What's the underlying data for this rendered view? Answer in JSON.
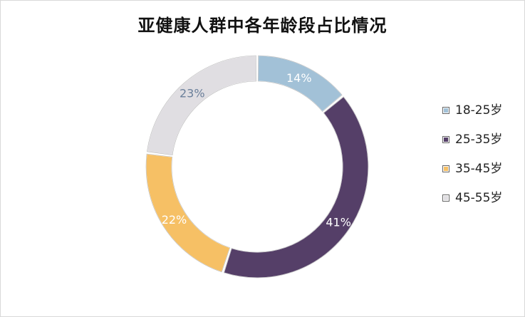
{
  "chart_data": {
    "type": "pie",
    "title": "亚健康人群中各年龄段占比情况",
    "legend_position": "right",
    "categories": [
      "18-25岁",
      "25-35岁",
      "35-45岁",
      "45-55岁"
    ],
    "values": [
      14,
      41,
      22,
      23
    ],
    "value_labels": [
      "14%",
      "41%",
      "22%",
      "23%"
    ],
    "colors": [
      "#a2c1d7",
      "#553f68",
      "#f6c065",
      "#e0dee2"
    ],
    "label_colors": [
      "#ffffff",
      "#ffffff",
      "#ffffff",
      "#6a7f9a"
    ],
    "donut": true
  }
}
